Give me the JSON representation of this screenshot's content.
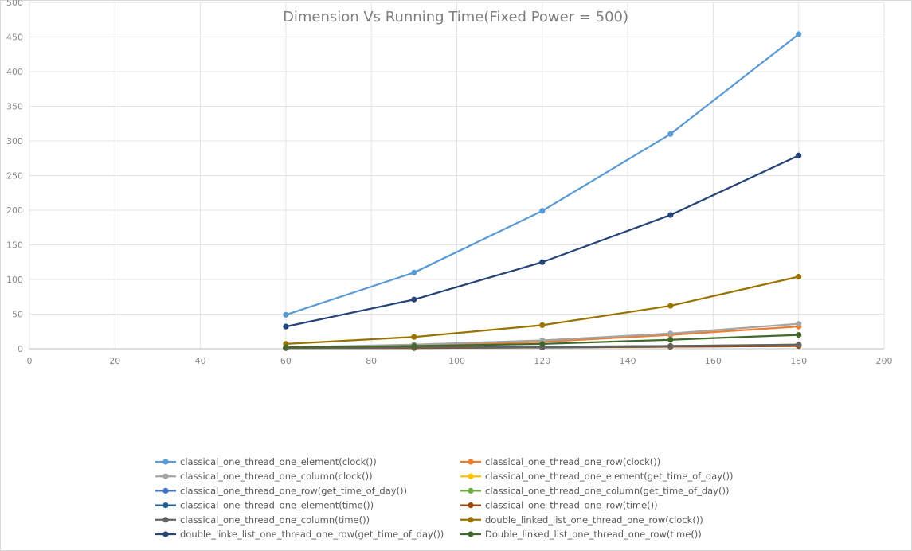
{
  "chart_data": {
    "type": "line",
    "title": "Dimension Vs Running Time(Fixed Power = 500)",
    "xlabel": "",
    "ylabel": "",
    "xlim": [
      0,
      200
    ],
    "ylim": [
      0,
      500
    ],
    "x_ticks": [
      0,
      20,
      40,
      60,
      80,
      100,
      120,
      140,
      160,
      180,
      200
    ],
    "y_ticks": [
      0,
      50,
      100,
      150,
      200,
      250,
      300,
      350,
      400,
      450,
      500
    ],
    "grid": true,
    "legend_position": "bottom",
    "x": [
      60,
      90,
      120,
      150,
      180
    ],
    "series": [
      {
        "name": "classical_one_thread_one_element(clock())",
        "color": "#5b9bd5",
        "values": [
          49,
          110,
          199,
          310,
          454
        ]
      },
      {
        "name": "classical_one_thread_one_row(clock())",
        "color": "#ed7d31",
        "values": [
          2,
          5,
          10,
          20,
          32
        ]
      },
      {
        "name": "classical_one_thread_one_column(clock())",
        "color": "#a5a5a5",
        "values": [
          2,
          6,
          12,
          22,
          36
        ]
      },
      {
        "name": "classical_one_thread_one_element(get_time_of_day())",
        "color": "#ffc000",
        "values": [
          1,
          2,
          3,
          4,
          6
        ]
      },
      {
        "name": "classical_one_thread_one_row(get_time_of_day())",
        "color": "#4472c4",
        "values": [
          1,
          1,
          2,
          3,
          4
        ]
      },
      {
        "name": "classical_one_thread_one_column(get_time_of_day())",
        "color": "#70ad47",
        "values": [
          1,
          1,
          2,
          3,
          5
        ]
      },
      {
        "name": "classical_one_thread_one_element(time())",
        "color": "#255e91",
        "values": [
          1,
          2,
          3,
          4,
          5
        ]
      },
      {
        "name": "classical_one_thread_one_row(time())",
        "color": "#9e480e",
        "values": [
          1,
          1,
          2,
          3,
          4
        ]
      },
      {
        "name": "classical_one_thread_one_column(time())",
        "color": "#636363",
        "values": [
          1,
          2,
          2,
          4,
          6
        ]
      },
      {
        "name": "double_linked_list_one_thread_one_row(clock())",
        "color": "#997300",
        "values": [
          7,
          17,
          34,
          62,
          104
        ]
      },
      {
        "name": "double_linke_list_one_thread_one_row(get_time_of_day())",
        "color": "#264478",
        "values": [
          32,
          71,
          125,
          193,
          279
        ]
      },
      {
        "name": "Double_linked_list_one_thread_one_row(time())",
        "color": "#43682b",
        "values": [
          2,
          4,
          7,
          13,
          20
        ]
      }
    ]
  }
}
